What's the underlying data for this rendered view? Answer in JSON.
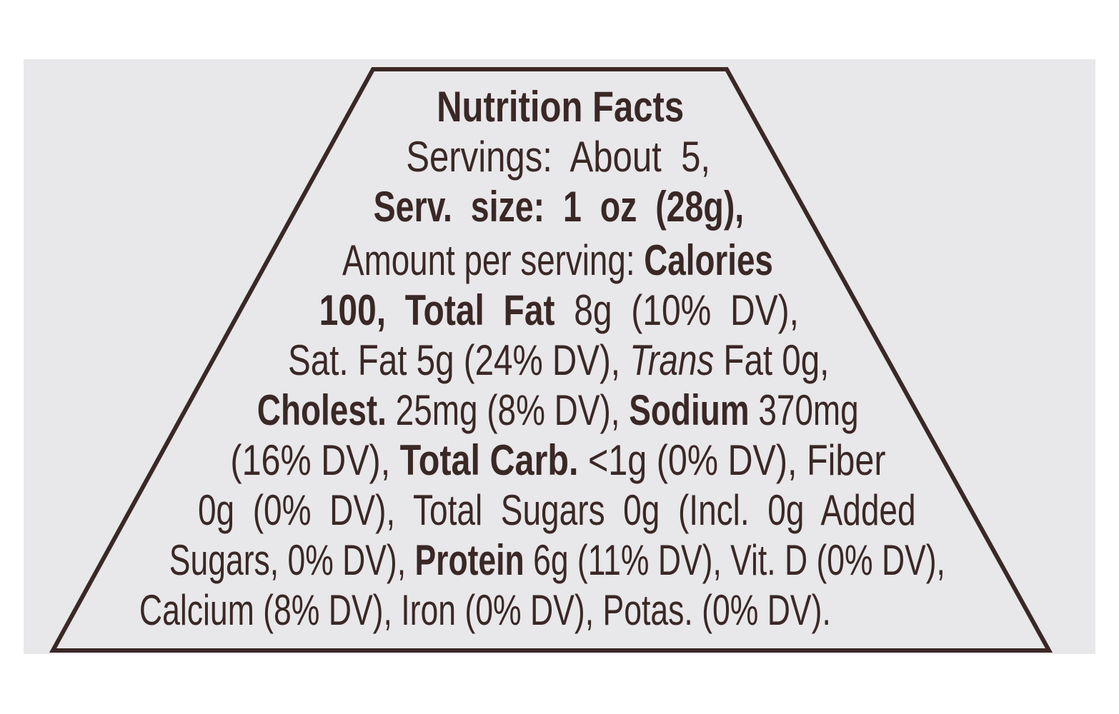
{
  "label": {
    "lines": [
      [
        "Nutrition Facts"
      ],
      [
        "Servings:  About  5,"
      ],
      [
        "Serv.  size:  1  oz  (28g),"
      ],
      [
        "Amount per serving: ",
        "Calories"
      ],
      [
        "100,  Total  Fat",
        "  8g  (10%  DV),"
      ],
      [
        "Sat. Fat 5g (24% DV), ",
        "Trans",
        " Fat 0g,"
      ],
      [
        "Cholest.",
        " 25mg (8% DV), ",
        "Sodium",
        " 370mg"
      ],
      [
        "(16% DV), ",
        "Total Carb.",
        " <1g (0% DV), Fiber"
      ],
      [
        "0g  (0%  DV),  Total  Sugars  0g  (Incl.  0g  Added"
      ],
      [
        "Sugars, 0% DV), ",
        "Protein",
        " 6g (11% DV), Vit. D (0% DV),"
      ],
      [
        "Calcium (8% DV), Iron (0% DV), Potas. (0% DV)."
      ]
    ]
  }
}
